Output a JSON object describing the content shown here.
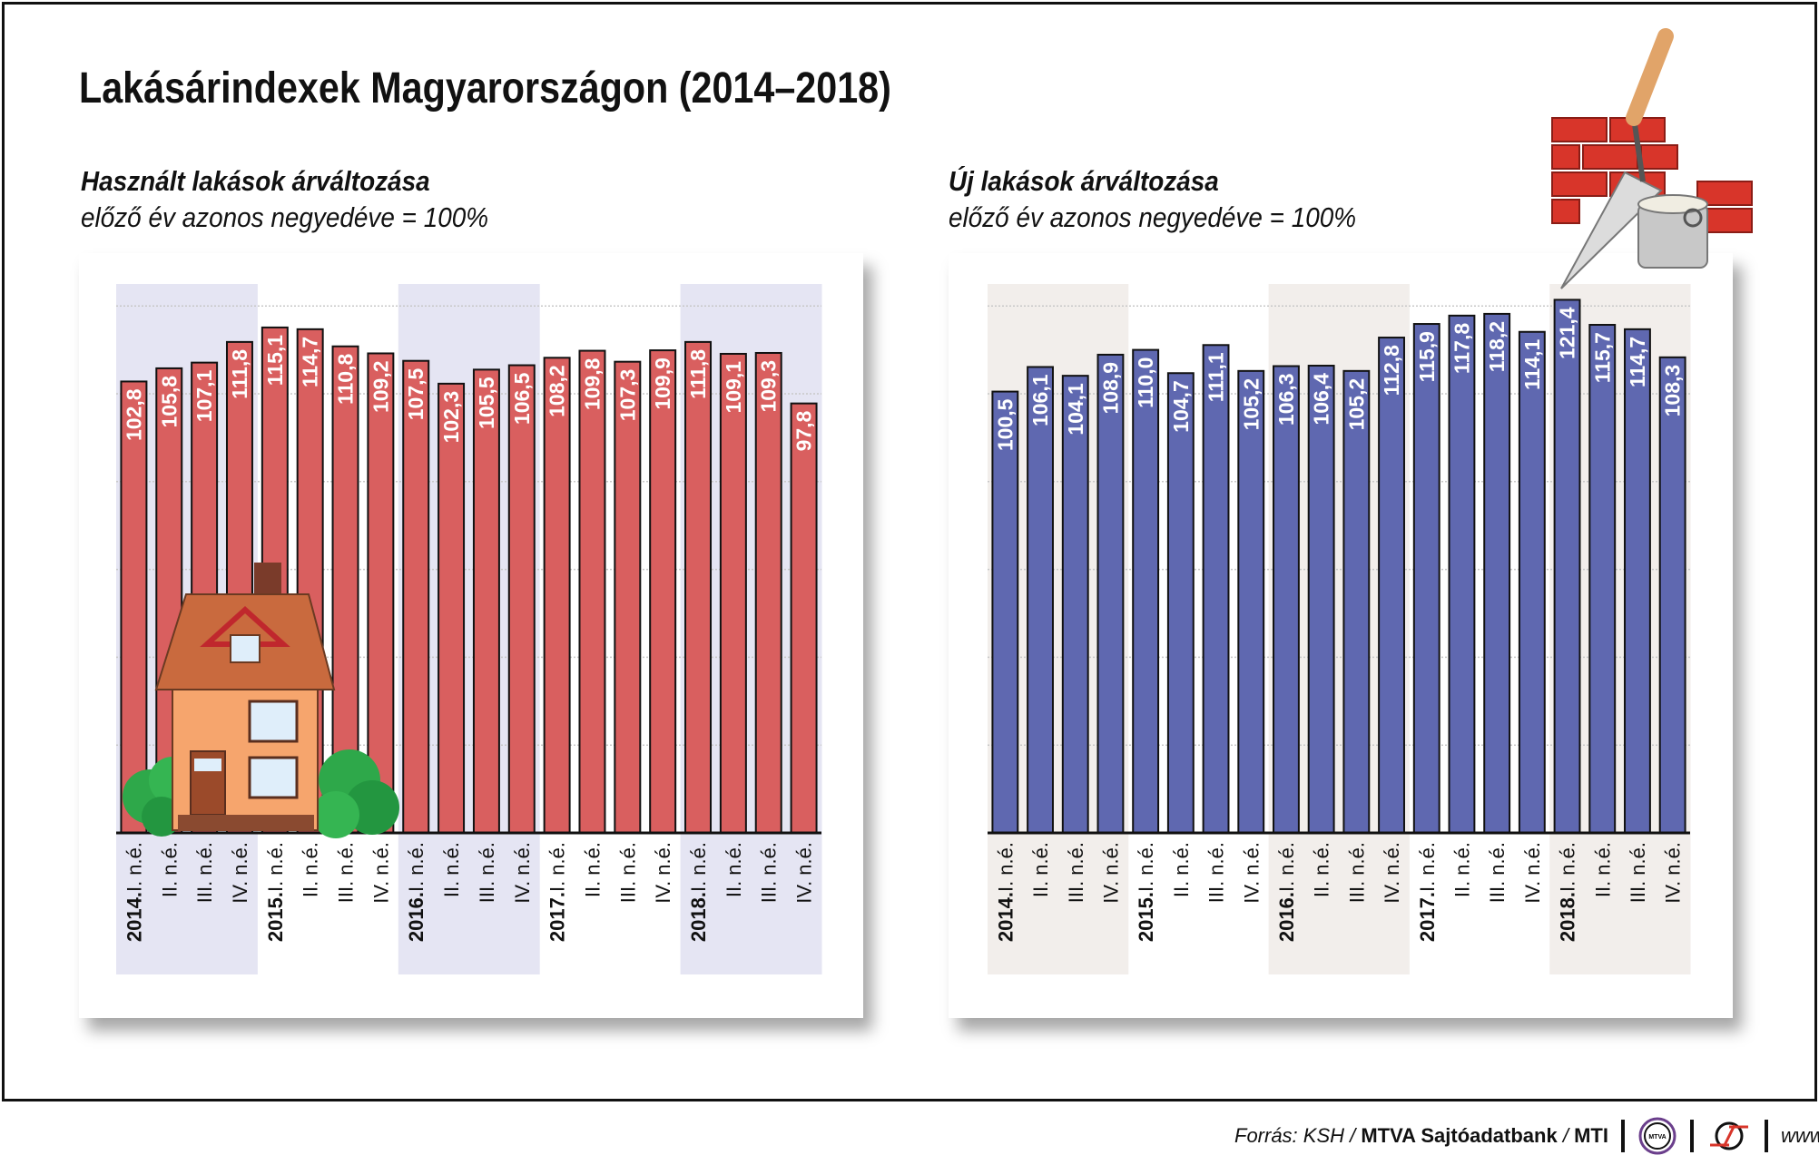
{
  "title": "Lakásárindexek Magyarországon (2014–2018)",
  "footer": {
    "source_prefix": "Forrás: KSH / ",
    "source_bank": "MTVA Sajtóadatbank",
    "source_sep": " / ",
    "source_mti": "MTI",
    "logo_mtva": "MTVA",
    "website": "www.mti.hu"
  },
  "chart_data": [
    {
      "type": "bar",
      "title": "Használt lakások árváltozása",
      "subtitle": "előző év azonos negyedéve = 100%",
      "categories": [
        "2014.I. n.é.",
        "II. n.é.",
        "III. n.é.",
        "IV. n.é.",
        "2015.I. n.é.",
        "II. n.é.",
        "III. n.é.",
        "IV. n.é.",
        "2016.I. n.é.",
        "II. n.é.",
        "III. n.é.",
        "IV. n.é.",
        "2017.I. n.é.",
        "II. n.é.",
        "III. n.é.",
        "IV. n.é.",
        "2018.I. n.é.",
        "II. n.é.",
        "III. n.é.",
        "IV. n.é."
      ],
      "values": [
        102.8,
        105.8,
        107.1,
        111.8,
        115.1,
        114.7,
        110.8,
        109.2,
        107.5,
        102.3,
        105.5,
        106.5,
        108.2,
        109.8,
        107.3,
        109.9,
        111.8,
        109.1,
        109.3,
        97.8
      ],
      "ylim": [
        0,
        120
      ],
      "grid": true,
      "shaded_years": [
        "2014",
        "2016",
        "2018"
      ],
      "bar_color": "#d95f5f",
      "band_color": "#e5e5f3"
    },
    {
      "type": "bar",
      "title": "Új lakások árváltozása",
      "subtitle": "előző év azonos negyedéve = 100%",
      "categories": [
        "2014.I. n.é.",
        "II. n.é.",
        "III. n.é.",
        "IV. n.é.",
        "2015.I. n.é.",
        "II. n.é.",
        "III. n.é.",
        "IV. n.é.",
        "2016.I. n.é.",
        "II. n.é.",
        "III. n.é.",
        "IV. n.é.",
        "2017.I. n.é.",
        "II. n.é.",
        "III. n.é.",
        "IV. n.é.",
        "2018.I. n.é.",
        "II. n.é.",
        "III. n.é.",
        "IV. n.é."
      ],
      "values": [
        100.5,
        106.1,
        104.1,
        108.9,
        110.0,
        104.7,
        111.1,
        105.2,
        106.3,
        106.4,
        105.2,
        112.8,
        115.9,
        117.8,
        118.2,
        114.1,
        121.4,
        115.7,
        114.7,
        108.3
      ],
      "ylim": [
        0,
        120
      ],
      "grid": true,
      "shaded_years": [
        "2014",
        "2016",
        "2018"
      ],
      "bar_color": "#5f68b0",
      "band_color": "#f2eeeb"
    }
  ]
}
